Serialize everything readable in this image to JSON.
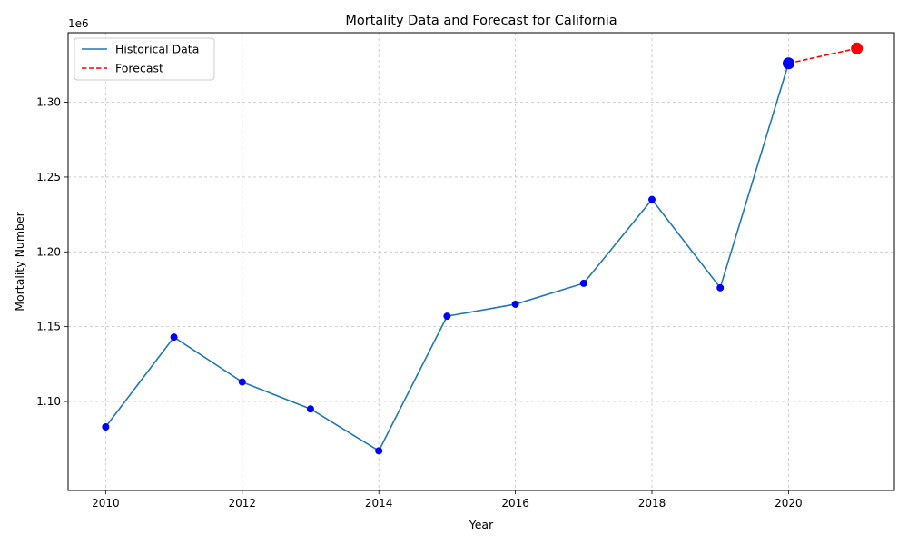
{
  "chart_data": {
    "type": "line",
    "title": "Mortality Data and Forecast for California",
    "xlabel": "Year",
    "ylabel": "Mortality Number",
    "y_offset_label": "1e6",
    "xlim": [
      2009.45,
      2021.55
    ],
    "ylim": [
      1.0405,
      1.3465
    ],
    "x_ticks": [
      2010,
      2012,
      2014,
      2016,
      2018,
      2020
    ],
    "x_tick_labels": [
      "2010",
      "2012",
      "2014",
      "2016",
      "2018",
      "2020"
    ],
    "y_ticks": [
      1.1,
      1.15,
      1.2,
      1.25,
      1.3
    ],
    "y_tick_labels": [
      "1.10",
      "1.15",
      "1.20",
      "1.25",
      "1.30"
    ],
    "grid": true,
    "legend_position": "top-left",
    "series": [
      {
        "name": "Historical Data",
        "style": "solid",
        "color": "#1f77b4",
        "marker_color": "#0000ff",
        "x": [
          2010,
          2011,
          2012,
          2013,
          2014,
          2015,
          2016,
          2017,
          2018,
          2019,
          2020
        ],
        "values": [
          1.083,
          1.143,
          1.113,
          1.095,
          1.067,
          1.157,
          1.165,
          1.179,
          1.235,
          1.176,
          1.326
        ],
        "highlight_last": true
      },
      {
        "name": "Forecast",
        "style": "dashed",
        "color": "#ff0000",
        "marker_color": "#ff0000",
        "x": [
          2020,
          2021
        ],
        "values": [
          1.326,
          1.336
        ],
        "highlight_last": true
      }
    ]
  }
}
